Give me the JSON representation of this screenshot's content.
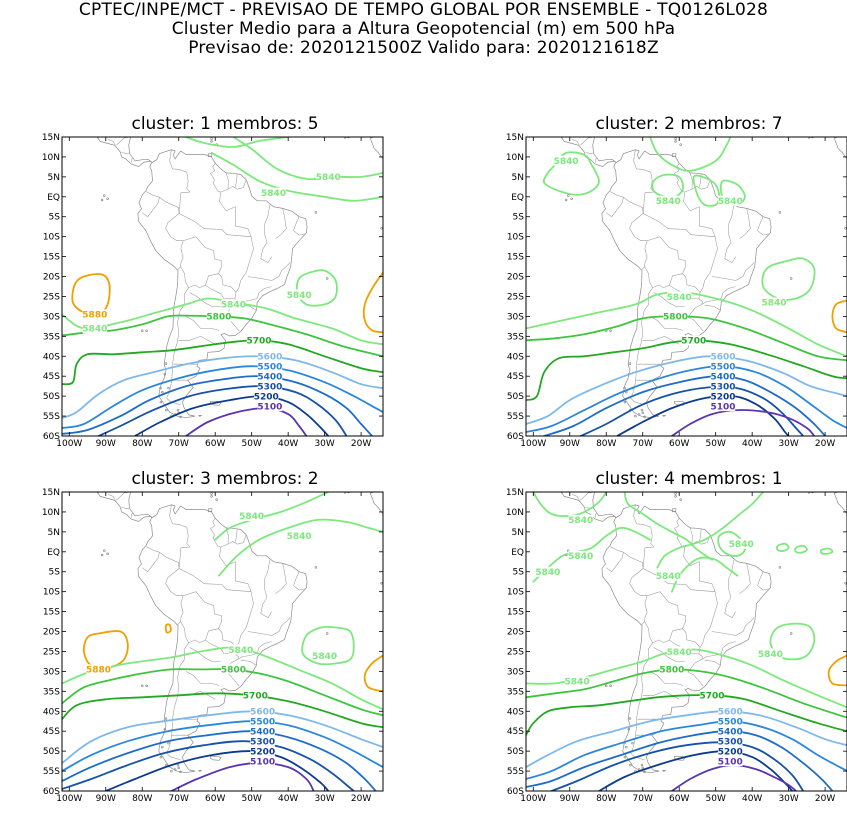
{
  "header": {
    "line1": "CPTEC/INPE/MCT - PREVISAO DE TEMPO GLOBAL POR ENSEMBLE - TQ0126L028",
    "line2": "Cluster Medio para a Altura Geopotencial (m) em 500 hPa",
    "line3": "Previsao de: 2020121500Z    Valido para: 2020121618Z"
  },
  "axes": {
    "lat_labels": [
      "15N",
      "10N",
      "5N",
      "EQ",
      "5S",
      "10S",
      "15S",
      "20S",
      "25S",
      "30S",
      "35S",
      "40S",
      "45S",
      "50S",
      "55S",
      "60S"
    ],
    "lon_labels": [
      "100W",
      "90W",
      "80W",
      "70W",
      "60W",
      "50W",
      "40W",
      "30W",
      "20W"
    ]
  },
  "colors": {
    "5100": "#5a35b0",
    "5200": "#0d3b8c",
    "5300": "#1552a8",
    "5400": "#1f6cc8",
    "5500": "#2c87dc",
    "5600": "#7fb8ea",
    "5700": "#23a823",
    "5800": "#3fc43f",
    "5840": "#7de87d",
    "5880": "#f0a000"
  },
  "panels": [
    {
      "title": "cluster: 1   membros: 5",
      "labels": [
        {
          "text": "5840",
          "lon": -29,
          "lat": 5,
          "level": "5840"
        },
        {
          "text": "5840",
          "lon": -44,
          "lat": 1,
          "level": "5840"
        },
        {
          "text": "5880",
          "lon": -93,
          "lat": -29.5,
          "level": "5880"
        },
        {
          "text": "5840",
          "lon": -37,
          "lat": -24.5,
          "level": "5840"
        },
        {
          "text": "5840",
          "lon": -55,
          "lat": -27,
          "level": "5840"
        },
        {
          "text": "5840",
          "lon": -93,
          "lat": -33,
          "level": "5840"
        },
        {
          "text": "5800",
          "lon": -59,
          "lat": -30,
          "level": "5800"
        },
        {
          "text": "5700",
          "lon": -48,
          "lat": -36,
          "level": "5700"
        },
        {
          "text": "5600",
          "lon": -45,
          "lat": -40,
          "level": "5600"
        },
        {
          "text": "5500",
          "lon": -45,
          "lat": -42.5,
          "level": "5500"
        },
        {
          "text": "5400",
          "lon": -45,
          "lat": -45,
          "level": "5400"
        },
        {
          "text": "5300",
          "lon": -45,
          "lat": -47.5,
          "level": "5300"
        },
        {
          "text": "5200",
          "lon": -46,
          "lat": -50,
          "level": "5200"
        },
        {
          "text": "5100",
          "lon": -45,
          "lat": -52.5,
          "level": "5100"
        }
      ]
    },
    {
      "title": "cluster: 2   membros: 7",
      "labels": [
        {
          "text": "5840",
          "lon": -91,
          "lat": 9,
          "level": "5840"
        },
        {
          "text": "5840",
          "lon": -63,
          "lat": -1,
          "level": "5840"
        },
        {
          "text": "5840",
          "lon": -46,
          "lat": -1,
          "level": "5840"
        },
        {
          "text": "5840",
          "lon": -60,
          "lat": -25,
          "level": "5840"
        },
        {
          "text": "5840",
          "lon": -34,
          "lat": -26.5,
          "level": "5840"
        },
        {
          "text": "5800",
          "lon": -61,
          "lat": -30,
          "level": "5800"
        },
        {
          "text": "5700",
          "lon": -56,
          "lat": -36,
          "level": "5700"
        },
        {
          "text": "5600",
          "lon": -48,
          "lat": -40,
          "level": "5600"
        },
        {
          "text": "5500",
          "lon": -48,
          "lat": -42.5,
          "level": "5500"
        },
        {
          "text": "5400",
          "lon": -48,
          "lat": -45,
          "level": "5400"
        },
        {
          "text": "5300",
          "lon": -48,
          "lat": -47.5,
          "level": "5300"
        },
        {
          "text": "5200",
          "lon": -48,
          "lat": -50,
          "level": "5200"
        },
        {
          "text": "5100",
          "lon": -48,
          "lat": -52.5,
          "level": "5100"
        }
      ]
    },
    {
      "title": "cluster: 3   membros: 2",
      "labels": [
        {
          "text": "5840",
          "lon": -50,
          "lat": 9,
          "level": "5840"
        },
        {
          "text": "5840",
          "lon": -37,
          "lat": 4,
          "level": "5840"
        },
        {
          "text": "5880",
          "lon": -92,
          "lat": -29.5,
          "level": "5880"
        },
        {
          "text": "5840",
          "lon": -53,
          "lat": -24.5,
          "level": "5840"
        },
        {
          "text": "5840",
          "lon": -30,
          "lat": -26,
          "level": "5840"
        },
        {
          "text": "5800",
          "lon": -55,
          "lat": -29.5,
          "level": "5800"
        },
        {
          "text": "5700",
          "lon": -49,
          "lat": -36,
          "level": "5700"
        },
        {
          "text": "5600",
          "lon": -47,
          "lat": -40,
          "level": "5600"
        },
        {
          "text": "5500",
          "lon": -47,
          "lat": -42.5,
          "level": "5500"
        },
        {
          "text": "5400",
          "lon": -47,
          "lat": -45,
          "level": "5400"
        },
        {
          "text": "5300",
          "lon": -47,
          "lat": -47.5,
          "level": "5300"
        },
        {
          "text": "5200",
          "lon": -47,
          "lat": -50,
          "level": "5200"
        },
        {
          "text": "5100",
          "lon": -47,
          "lat": -52.5,
          "level": "5100"
        }
      ]
    },
    {
      "title": "cluster: 4   membros: 1",
      "labels": [
        {
          "text": "5840",
          "lon": -87,
          "lat": 8,
          "level": "5840"
        },
        {
          "text": "5840",
          "lon": -87,
          "lat": -1,
          "level": "5840"
        },
        {
          "text": "5840",
          "lon": -43,
          "lat": 2,
          "level": "5840"
        },
        {
          "text": "5840",
          "lon": -96,
          "lat": -5,
          "level": "5840"
        },
        {
          "text": "5840",
          "lon": -63,
          "lat": -6,
          "level": "5840"
        },
        {
          "text": "5840",
          "lon": -60,
          "lat": -25,
          "level": "5840"
        },
        {
          "text": "5840",
          "lon": -35,
          "lat": -25.5,
          "level": "5840"
        },
        {
          "text": "5840",
          "lon": -88,
          "lat": -32.5,
          "level": "5840"
        },
        {
          "text": "5800",
          "lon": -62,
          "lat": -29.5,
          "level": "5800"
        },
        {
          "text": "5700",
          "lon": -51,
          "lat": -36,
          "level": "5700"
        },
        {
          "text": "5600",
          "lon": -46,
          "lat": -40,
          "level": "5600"
        },
        {
          "text": "5500",
          "lon": -46,
          "lat": -42.5,
          "level": "5500"
        },
        {
          "text": "5400",
          "lon": -46,
          "lat": -45,
          "level": "5400"
        },
        {
          "text": "5300",
          "lon": -46,
          "lat": -47.5,
          "level": "5300"
        },
        {
          "text": "5200",
          "lon": -46,
          "lat": -50,
          "level": "5200"
        },
        {
          "text": "5100",
          "lon": -46,
          "lat": -52.5,
          "level": "5100"
        }
      ]
    }
  ]
}
